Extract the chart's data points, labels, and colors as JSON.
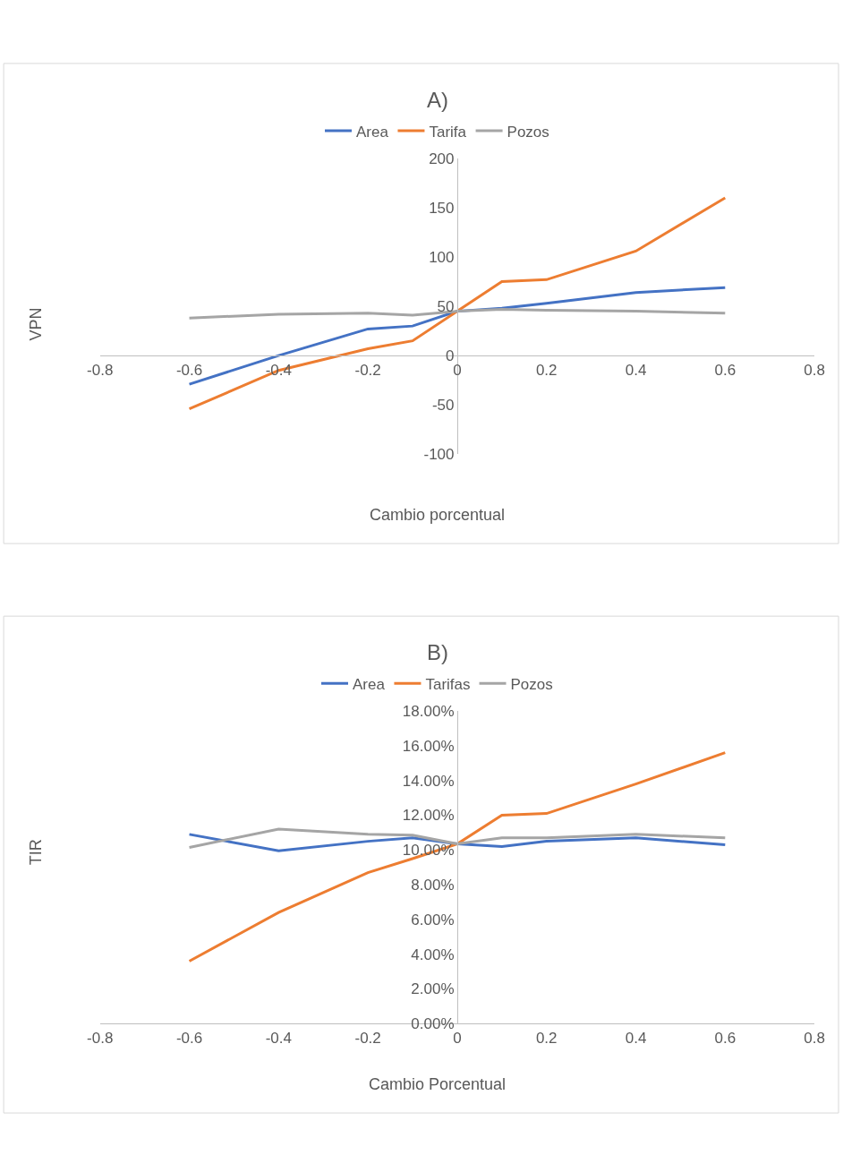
{
  "chart_data": [
    {
      "type": "line",
      "title": "A)",
      "xlabel": "Cambio porcentual",
      "ylabel": "VPN",
      "x": [
        -0.6,
        -0.4,
        -0.2,
        -0.1,
        0,
        0.1,
        0.2,
        0.4,
        0.6
      ],
      "series": [
        {
          "name": "Area",
          "color": "#4472c4",
          "values": [
            -29,
            0,
            27,
            30,
            45,
            48,
            53,
            64,
            69
          ]
        },
        {
          "name": "Tarifa",
          "color": "#ed7d31",
          "values": [
            -54,
            -15,
            7,
            15,
            45,
            75,
            77,
            106,
            160
          ]
        },
        {
          "name": "Pozos",
          "color": "#a5a5a5",
          "values": [
            38,
            42,
            43,
            41,
            45,
            47,
            46,
            45,
            43
          ]
        }
      ],
      "xlim": [
        -0.8,
        0.8
      ],
      "xticks": [
        -0.8,
        -0.6,
        -0.4,
        -0.2,
        0,
        0.2,
        0.4,
        0.6,
        0.8
      ],
      "ylim": [
        -100,
        200
      ],
      "yticks": [
        -100,
        -50,
        0,
        50,
        100,
        150,
        200
      ],
      "legend": "top",
      "marker": "none",
      "line_style": "solid"
    },
    {
      "type": "line",
      "title": "B)",
      "xlabel": "Cambio Porcentual",
      "ylabel": "TIR",
      "x": [
        -0.6,
        -0.4,
        -0.2,
        -0.1,
        0,
        0.1,
        0.2,
        0.4,
        0.6
      ],
      "series": [
        {
          "name": "Area",
          "color": "#4472c4",
          "values": [
            0.109,
            0.0995,
            0.105,
            0.107,
            0.1035,
            0.102,
            0.105,
            0.107,
            0.103
          ]
        },
        {
          "name": "Tarifas",
          "color": "#ed7d31",
          "values": [
            0.036,
            0.064,
            0.087,
            0.095,
            0.1035,
            0.12,
            0.121,
            0.138,
            0.156
          ]
        },
        {
          "name": "Pozos",
          "color": "#a5a5a5",
          "values": [
            0.1015,
            0.112,
            0.109,
            0.1085,
            0.1035,
            0.107,
            0.107,
            0.109,
            0.107
          ]
        }
      ],
      "xlim": [
        -0.8,
        0.8
      ],
      "xticks": [
        -0.8,
        -0.6,
        -0.4,
        -0.2,
        0,
        0.2,
        0.4,
        0.6,
        0.8
      ],
      "ylim": [
        0,
        0.18
      ],
      "yticks": [
        {
          "value": 0,
          "label": "0.00%"
        },
        {
          "value": 0.02,
          "label": "2.00%"
        },
        {
          "value": 0.04,
          "label": "4.00%"
        },
        {
          "value": 0.06,
          "label": "6.00%"
        },
        {
          "value": 0.08,
          "label": "8.00%"
        },
        {
          "value": 0.1,
          "label": "10.00%"
        },
        {
          "value": 0.12,
          "label": "12.00%"
        },
        {
          "value": 0.14,
          "label": "14.00%"
        },
        {
          "value": 0.16,
          "label": "16.00%"
        },
        {
          "value": 0.18,
          "label": "18.00%"
        }
      ],
      "legend": "top",
      "marker": "none",
      "line_style": "solid"
    }
  ]
}
